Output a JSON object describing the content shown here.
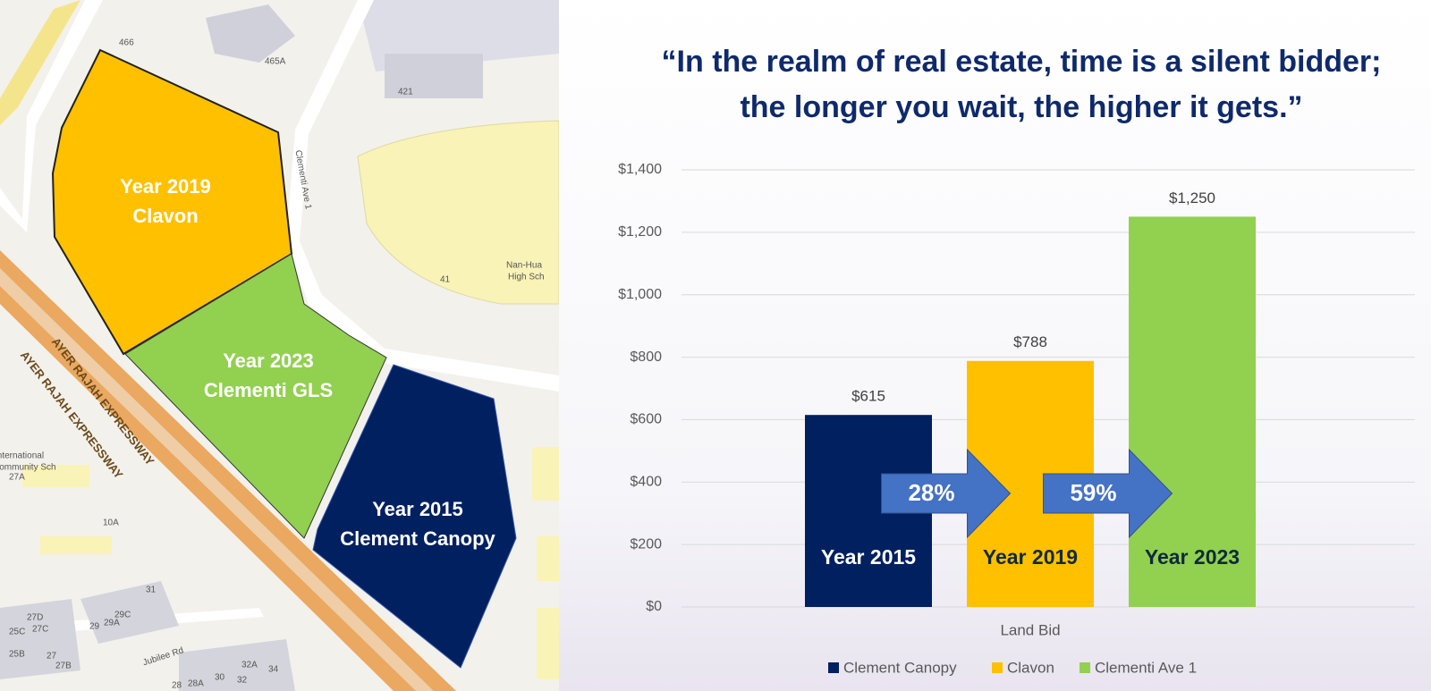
{
  "map": {
    "parcels": [
      {
        "year": "Year 2019",
        "name": "Clavon"
      },
      {
        "year": "Year 2023",
        "name": "Clementi GLS"
      },
      {
        "year": "Year 2015",
        "name": "Clement Canopy"
      }
    ],
    "labels": [
      "466",
      "465A",
      "421",
      "Clementi Ave 1",
      "Nan-Hua",
      "High Sch",
      "41",
      "AYER RAJAH EXPRESSWAY",
      "AYER RAJAH EXPRESSWAY",
      "International",
      "Community Sch",
      "27A",
      "10A",
      "31",
      "27D",
      "27C",
      "25C",
      "29",
      "29A",
      "29C",
      "25B",
      "27",
      "27B",
      "Jubilee Rd",
      "28",
      "28A",
      "30",
      "32",
      "32A",
      "34"
    ]
  },
  "chart_data": {
    "type": "bar",
    "title": [
      "“In the realm of real estate, time is a silent bidder;",
      "the longer you wait, the higher it gets.”"
    ],
    "categories": [
      "Land Bid"
    ],
    "series": [
      {
        "name": "Clement Canopy",
        "color": "#002060",
        "values": [
          615
        ],
        "value_labels": [
          "$615"
        ]
      },
      {
        "name": "Clavon",
        "color": "#ffc000",
        "values": [
          788
        ],
        "value_labels": [
          "$788"
        ]
      },
      {
        "name": "Clementi Ave 1",
        "color": "#92d050",
        "values": [
          1250
        ],
        "value_labels": [
          "$1,250"
        ]
      }
    ],
    "bar_labels": [
      "Year 2015",
      "Year 2019",
      "Year 2023"
    ],
    "growth_labels": [
      "28%",
      "59%"
    ],
    "ylim": [
      0,
      1400
    ],
    "yticks": [
      {
        "value": 0,
        "label": "$0"
      },
      {
        "value": 200,
        "label": "$200"
      },
      {
        "value": 400,
        "label": "$400"
      },
      {
        "value": 600,
        "label": "$600"
      },
      {
        "value": 800,
        "label": "$800"
      },
      {
        "value": 1000,
        "label": "$1,000"
      },
      {
        "value": 1200,
        "label": "$1,200"
      },
      {
        "value": 1400,
        "label": "$1,400"
      }
    ],
    "grid": true,
    "legend": "bottom",
    "arrow_color": "#4472c4"
  }
}
